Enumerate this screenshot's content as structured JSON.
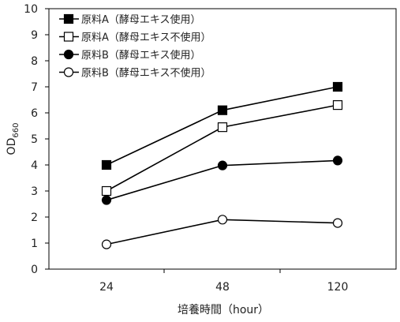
{
  "chart_data": {
    "type": "line",
    "categories": [
      "24",
      "48",
      "120"
    ],
    "ylim": [
      0,
      10
    ],
    "yticks": [
      0,
      1,
      2,
      3,
      4,
      5,
      6,
      7,
      8,
      9,
      10
    ],
    "xlabel": "培養時間（hour）",
    "ylabel_main": "OD",
    "ylabel_sub": "660",
    "grid": false,
    "legend_position": "top-left",
    "series": [
      {
        "name": "原料A（酵母エキス使用）",
        "marker": "square",
        "filled": true,
        "values": [
          4.0,
          6.1,
          7.0
        ]
      },
      {
        "name": "原料A（酵母エキス不使用）",
        "marker": "square",
        "filled": false,
        "values": [
          3.0,
          5.45,
          6.3
        ]
      },
      {
        "name": "原料B（酵母エキス使用）",
        "marker": "circle",
        "filled": true,
        "values": [
          2.65,
          3.98,
          4.17
        ]
      },
      {
        "name": "原料B（酵母エキス不使用）",
        "marker": "circle",
        "filled": false,
        "values": [
          0.95,
          1.9,
          1.77
        ]
      }
    ]
  }
}
